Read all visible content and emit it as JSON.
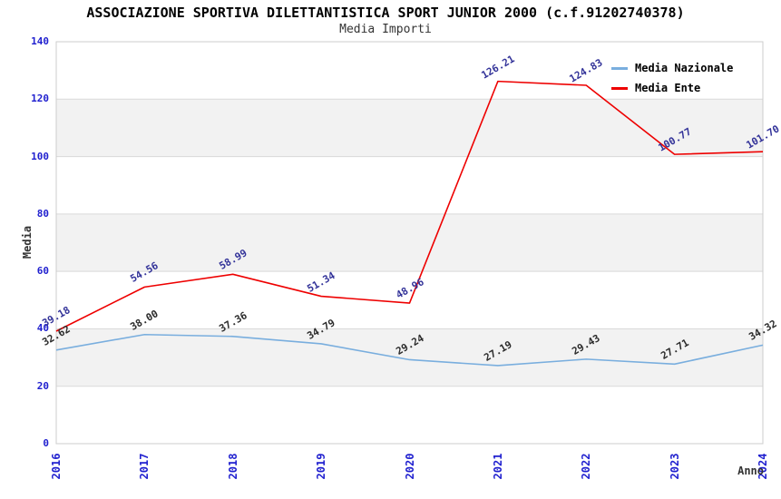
{
  "chart_data": {
    "type": "line",
    "title": "ASSOCIAZIONE SPORTIVA DILETTANTISTICA SPORT JUNIOR 2000 (c.f.91202740378)",
    "subtitle": "Media Importi",
    "xlabel": "Anno",
    "ylabel": "Media",
    "categories": [
      "2016",
      "2017",
      "2018",
      "2019",
      "2020",
      "2021",
      "2022",
      "2023",
      "2024"
    ],
    "ylim": [
      0,
      140
    ],
    "yticks": [
      0,
      20,
      40,
      60,
      80,
      100,
      120,
      140
    ],
    "grid": "horizontal gridlines every 20, alternating shaded bands",
    "band_fill_ranges": [
      [
        20,
        40
      ],
      [
        60,
        80
      ],
      [
        100,
        120
      ]
    ],
    "legend_position": "top-right inside plot",
    "series": [
      {
        "name": "Media Nazionale",
        "color": "#79aede",
        "label_color": "#2b2b2b",
        "values": [
          32.62,
          38.0,
          37.36,
          34.79,
          29.24,
          27.19,
          29.43,
          27.71,
          34.32
        ],
        "labels": [
          "32.62",
          "38.00",
          "37.36",
          "34.79",
          "29.24",
          "27.19",
          "29.43",
          "27.71",
          "34.32"
        ]
      },
      {
        "name": "Media Ente",
        "color": "#ee0000",
        "label_color": "#333399",
        "values": [
          39.18,
          54.56,
          58.99,
          51.34,
          48.96,
          126.21,
          124.83,
          100.77,
          101.7
        ],
        "labels": [
          "39.18",
          "54.56",
          "58.99",
          "51.34",
          "48.96",
          "126.21",
          "124.83",
          "100.77",
          "101.70"
        ]
      }
    ],
    "colors": {
      "axis_tick": "#2020cf",
      "axis_title": "#333333",
      "band": "#f2f2f2",
      "grid": "#d9d9d9",
      "border": "#cccccc",
      "background": "#ffffff"
    }
  }
}
